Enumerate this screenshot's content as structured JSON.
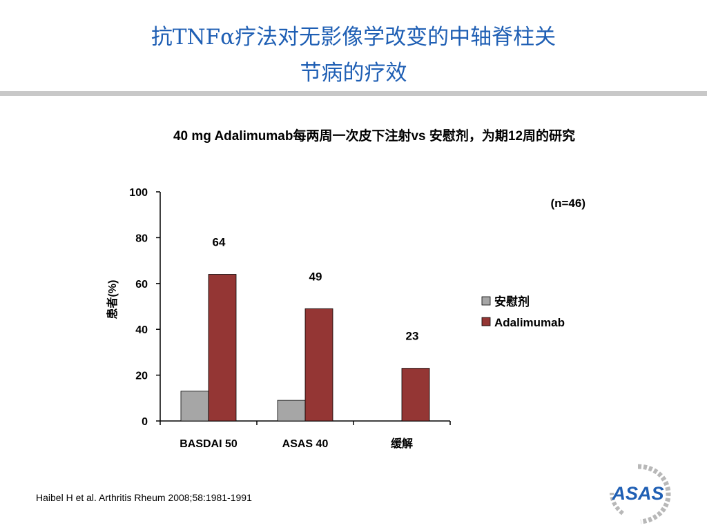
{
  "slide": {
    "title_line1": "抗TNFα疗法对无影像学改变的中轴脊柱关",
    "title_line2": "节病的疗效",
    "subtitle": "40 mg Adalimumab每两周一次皮下注射vs 安慰剂，为期12周的研究",
    "citation": "Haibel H et al. Arthritis Rheum 2008;58:1981-1991",
    "logo_text": "ASAS"
  },
  "chart_data": {
    "type": "bar",
    "title": "",
    "xlabel": "",
    "ylabel": "患者(%)",
    "ylim": [
      0,
      100
    ],
    "yticks": [
      0,
      20,
      40,
      60,
      80,
      100
    ],
    "categories": [
      "BASDAI 50",
      "ASAS 40",
      "缓解"
    ],
    "series": [
      {
        "name": "安慰剂",
        "color": "#a6a6a6",
        "values": [
          13,
          9,
          0
        ]
      },
      {
        "name": "Adalimumab",
        "color": "#943634",
        "values": [
          64,
          49,
          23
        ]
      }
    ],
    "data_labels": [
      "64",
      "49",
      "23"
    ],
    "annotation": "(n=46)",
    "legend_position": "right",
    "grid": false
  }
}
